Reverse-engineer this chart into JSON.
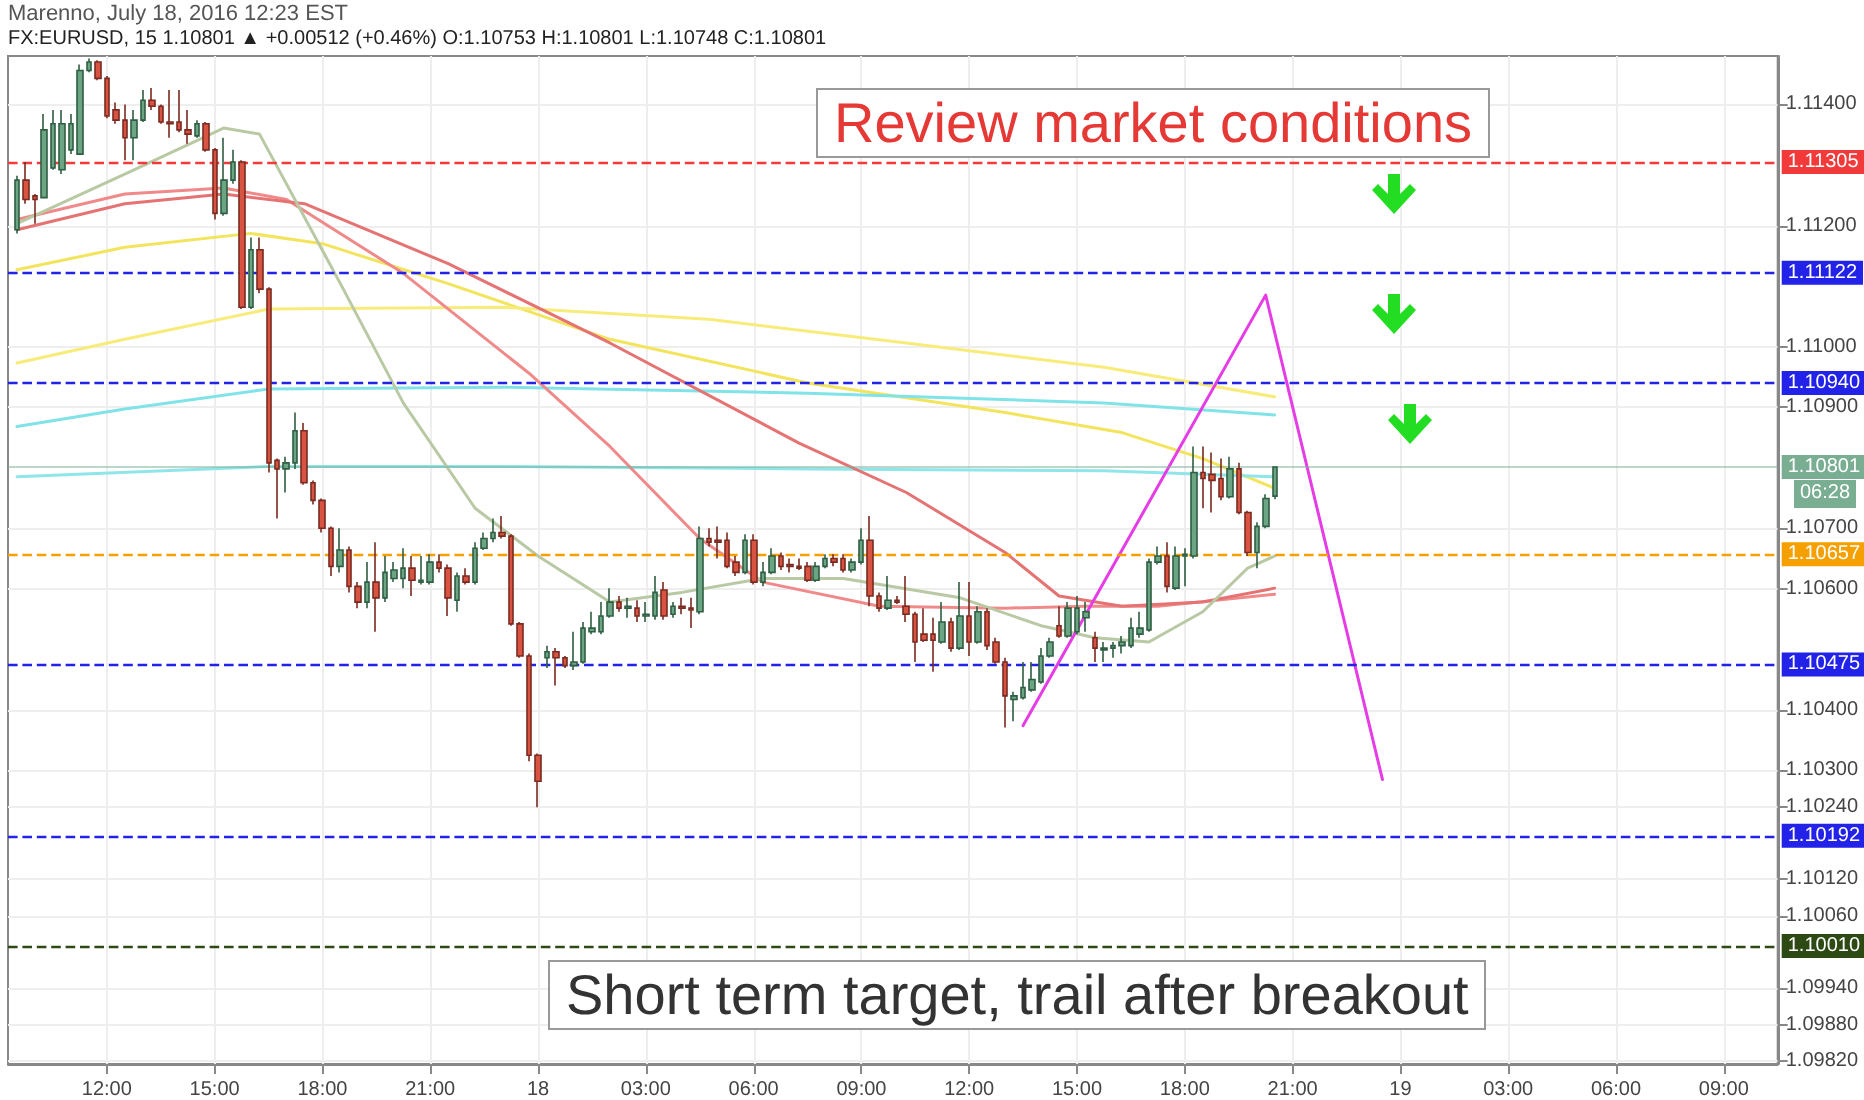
{
  "chart_data": {
    "type": "candlestick",
    "title": "Marenno, July 18, 2016 12:23 EST",
    "subtitle": "FX:EURUSD, 15 1.10801 ▲ +0.00512 (+0.46%) O:1.10753 H:1.10801 L:1.10748 C:1.10801",
    "annotations": [
      "Review market conditions",
      "Short term target, trail after breakout",
      "06:28"
    ],
    "x": [
      "2016-07-17T09:30",
      "2016-07-17T09:45",
      "2016-07-17T10:00",
      "2016-07-17T10:15",
      "2016-07-17T10:30",
      "2016-07-17T10:45",
      "2016-07-17T11:00",
      "2016-07-17T11:15",
      "2016-07-17T11:30",
      "2016-07-17T11:45",
      "2016-07-17T12:00",
      "2016-07-17T12:15",
      "2016-07-17T12:30",
      "2016-07-17T12:45",
      "2016-07-17T13:00",
      "2016-07-17T13:15",
      "2016-07-17T13:30",
      "2016-07-17T13:45",
      "2016-07-17T14:00",
      "2016-07-17T14:15",
      "2016-07-17T14:30",
      "2016-07-17T14:45",
      "2016-07-17T15:00",
      "2016-07-17T15:15",
      "2016-07-17T15:30",
      "2016-07-17T15:45",
      "2016-07-17T16:00",
      "2016-07-17T16:15",
      "2016-07-17T16:30",
      "2016-07-17T16:45",
      "2016-07-17T17:00",
      "2016-07-17T17:15",
      "2016-07-17T17:30",
      "2016-07-17T17:45",
      "2016-07-17T18:00",
      "2016-07-17T18:15",
      "2016-07-17T18:30",
      "2016-07-17T18:45",
      "2016-07-17T19:00",
      "2016-07-17T19:15",
      "2016-07-17T19:30",
      "2016-07-17T19:45",
      "2016-07-17T20:00",
      "2016-07-17T20:15",
      "2016-07-17T20:30",
      "2016-07-17T20:45",
      "2016-07-17T21:00",
      "2016-07-17T21:15",
      "2016-07-17T21:30",
      "2016-07-17T21:45",
      "2016-07-17T22:00",
      "2016-07-17T22:15",
      "2016-07-17T22:30",
      "2016-07-17T22:45",
      "2016-07-17T23:00",
      "2016-07-17T23:15",
      "2016-07-17T23:30",
      "2016-07-17T23:45",
      "2016-07-18T00:00",
      "2016-07-18T00:15",
      "2016-07-18T00:30",
      "2016-07-18T00:45",
      "2016-07-18T01:00",
      "2016-07-18T01:15",
      "2016-07-18T01:30",
      "2016-07-18T01:45",
      "2016-07-18T02:00",
      "2016-07-18T02:15",
      "2016-07-18T02:30",
      "2016-07-18T02:45",
      "2016-07-18T03:00",
      "2016-07-18T03:15",
      "2016-07-18T03:30",
      "2016-07-18T03:45",
      "2016-07-18T04:00",
      "2016-07-18T04:15",
      "2016-07-18T04:30",
      "2016-07-18T04:45",
      "2016-07-18T05:00",
      "2016-07-18T05:15",
      "2016-07-18T05:30",
      "2016-07-18T05:45",
      "2016-07-18T06:00",
      "2016-07-18T06:15",
      "2016-07-18T06:30",
      "2016-07-18T06:45",
      "2016-07-18T07:00",
      "2016-07-18T07:15",
      "2016-07-18T07:30",
      "2016-07-18T07:45",
      "2016-07-18T08:00",
      "2016-07-18T08:15",
      "2016-07-18T08:30",
      "2016-07-18T08:45",
      "2016-07-18T09:00",
      "2016-07-18T09:15",
      "2016-07-18T09:30",
      "2016-07-18T09:45",
      "2016-07-18T10:00",
      "2016-07-18T10:15",
      "2016-07-18T10:30",
      "2016-07-18T10:45",
      "2016-07-18T11:00",
      "2016-07-18T11:15",
      "2016-07-18T11:30",
      "2016-07-18T11:45",
      "2016-07-18T12:00",
      "2016-07-18T12:15",
      "2016-07-18T12:30",
      "2016-07-18T12:45",
      "2016-07-18T13:00",
      "2016-07-18T13:15",
      "2016-07-18T13:30",
      "2016-07-18T13:45",
      "2016-07-18T14:00",
      "2016-07-18T14:15",
      "2016-07-18T14:30",
      "2016-07-18T14:45",
      "2016-07-18T15:00",
      "2016-07-18T15:15",
      "2016-07-18T15:30",
      "2016-07-18T15:45",
      "2016-07-18T16:00",
      "2016-07-18T16:15",
      "2016-07-18T16:30",
      "2016-07-18T16:45",
      "2016-07-18T17:00",
      "2016-07-18T17:15",
      "2016-07-18T17:30",
      "2016-07-18T17:45",
      "2016-07-18T18:00",
      "2016-07-18T18:15",
      "2016-07-18T18:30",
      "2016-07-18T18:45",
      "2016-07-18T19:00",
      "2016-07-18T19:15",
      "2016-07-18T19:30",
      "2016-07-18T19:45",
      "2016-07-18T20:00",
      "2016-07-18T20:15",
      "2016-07-18T20:30"
    ],
    "ohlc": [
      [
        1.11193,
        1.11282,
        1.11187,
        1.11275
      ],
      [
        1.11275,
        1.11305,
        1.11236,
        1.11243
      ],
      [
        1.11249,
        1.11252,
        1.11203,
        1.11243
      ],
      [
        1.11246,
        1.11384,
        1.11246,
        1.11358
      ],
      [
        1.11295,
        1.11391,
        1.11292,
        1.11368
      ],
      [
        1.11292,
        1.11391,
        1.11285,
        1.11368
      ],
      [
        1.11325,
        1.11384,
        1.11318,
        1.11368
      ],
      [
        1.11318,
        1.11466,
        1.11318,
        1.11456
      ],
      [
        1.11456,
        1.11476,
        1.11453,
        1.1147
      ],
      [
        1.1147,
        1.11473,
        1.1144,
        1.11443
      ],
      [
        1.11443,
        1.11447,
        1.11377,
        1.11381
      ],
      [
        1.11391,
        1.11403,
        1.11368,
        1.11374
      ],
      [
        1.11374,
        1.114,
        1.11308,
        1.11345
      ],
      [
        1.11345,
        1.11391,
        1.11308,
        1.11374
      ],
      [
        1.11374,
        1.11424,
        1.11371,
        1.11407
      ],
      [
        1.11407,
        1.11427,
        1.11391,
        1.11397
      ],
      [
        1.11397,
        1.114,
        1.11368,
        1.11371
      ],
      [
        1.11371,
        1.11424,
        1.11345,
        1.11368
      ],
      [
        1.11371,
        1.11424,
        1.11354,
        1.11358
      ],
      [
        1.11358,
        1.11391,
        1.11335,
        1.11351
      ],
      [
        1.11348,
        1.11374,
        1.11345,
        1.11368
      ],
      [
        1.11368,
        1.11371,
        1.11322,
        1.11325
      ],
      [
        1.11325,
        1.11328,
        1.1121,
        1.1122
      ],
      [
        1.1122,
        1.11345,
        1.11216,
        1.11275
      ],
      [
        1.11275,
        1.11325,
        1.11269,
        1.11305
      ],
      [
        1.11305,
        1.11308,
        1.11062,
        1.11065
      ],
      [
        1.11065,
        1.1118,
        1.11062,
        1.1116
      ],
      [
        1.1116,
        1.1118,
        1.11088,
        1.11095
      ],
      [
        1.11095,
        1.11098,
        1.10792,
        1.10808
      ],
      [
        1.10812,
        1.10815,
        1.10716,
        1.10798
      ],
      [
        1.10798,
        1.10818,
        1.10759,
        1.10808
      ],
      [
        1.10808,
        1.10891,
        1.10798,
        1.10861
      ],
      [
        1.10861,
        1.10874,
        1.10772,
        1.10775
      ],
      [
        1.10775,
        1.10779,
        1.10739,
        1.10746
      ],
      [
        1.10746,
        1.10749,
        1.10693,
        1.107
      ],
      [
        1.107,
        1.10703,
        1.10621,
        1.10637
      ],
      [
        1.10637,
        1.107,
        1.10627,
        1.10664
      ],
      [
        1.10664,
        1.1067,
        1.10594,
        1.10604
      ],
      [
        1.10604,
        1.10611,
        1.10568,
        1.10578
      ],
      [
        1.10578,
        1.10644,
        1.10568,
        1.10611
      ],
      [
        1.10611,
        1.10677,
        1.10529,
        1.10585
      ],
      [
        1.10585,
        1.10654,
        1.10578,
        1.10627
      ],
      [
        1.10617,
        1.10644,
        1.10611,
        1.10631
      ],
      [
        1.10617,
        1.10667,
        1.10601,
        1.10634
      ],
      [
        1.10634,
        1.10654,
        1.10588,
        1.10614
      ],
      [
        1.10611,
        1.10654,
        1.10607,
        1.10614
      ],
      [
        1.10611,
        1.10657,
        1.10607,
        1.10644
      ],
      [
        1.10644,
        1.10657,
        1.10627,
        1.10634
      ],
      [
        1.10634,
        1.1064,
        1.10555,
        1.10585
      ],
      [
        1.10581,
        1.10627,
        1.10562,
        1.10621
      ],
      [
        1.10621,
        1.10634,
        1.10607,
        1.10611
      ],
      [
        1.10611,
        1.10677,
        1.10607,
        1.10667
      ],
      [
        1.10667,
        1.10693,
        1.10664,
        1.10683
      ],
      [
        1.10683,
        1.10716,
        1.10677,
        1.10693
      ],
      [
        1.10693,
        1.1072,
        1.10683,
        1.10687
      ],
      [
        1.10687,
        1.1069,
        1.10539,
        1.10542
      ],
      [
        1.10542,
        1.10545,
        1.10486,
        1.10489
      ],
      [
        1.10489,
        1.10493,
        1.10315,
        1.10325
      ],
      [
        1.10325,
        1.10328,
        1.10239,
        1.10282
      ],
      [
        1.10486,
        1.10506,
        1.10469,
        1.10496
      ],
      [
        1.10496,
        1.10502,
        1.1044,
        1.10486
      ],
      [
        1.10486,
        1.10489,
        1.10469,
        1.10473
      ],
      [
        1.10473,
        1.10529,
        1.10466,
        1.10479
      ],
      [
        1.10479,
        1.10545,
        1.10476,
        1.10535
      ],
      [
        1.10529,
        1.10562,
        1.10525,
        1.10535
      ],
      [
        1.10529,
        1.10578,
        1.10525,
        1.10555
      ],
      [
        1.10555,
        1.10601,
        1.10552,
        1.10578
      ],
      [
        1.10578,
        1.10588,
        1.10562,
        1.10568
      ],
      [
        1.10568,
        1.10585,
        1.10552,
        1.10571
      ],
      [
        1.10568,
        1.10581,
        1.10545,
        1.10555
      ],
      [
        1.10555,
        1.10578,
        1.10545,
        1.10558
      ],
      [
        1.10555,
        1.10621,
        1.10549,
        1.10594
      ],
      [
        1.10598,
        1.10611,
        1.10549,
        1.10555
      ],
      [
        1.10558,
        1.10578,
        1.10552,
        1.10571
      ],
      [
        1.10571,
        1.10585,
        1.10558,
        1.10568
      ],
      [
        1.10568,
        1.10585,
        1.10535,
        1.10565
      ],
      [
        1.10562,
        1.10703,
        1.10558,
        1.10683
      ],
      [
        1.10683,
        1.107,
        1.1067,
        1.10677
      ],
      [
        1.1068,
        1.10703,
        1.1065,
        1.10677
      ],
      [
        1.1068,
        1.10693,
        1.10634,
        1.10637
      ],
      [
        1.10644,
        1.10654,
        1.10621,
        1.10627
      ],
      [
        1.10627,
        1.1069,
        1.10624,
        1.1068
      ],
      [
        1.1068,
        1.1069,
        1.10607,
        1.10611
      ],
      [
        1.10611,
        1.10644,
        1.10604,
        1.10627
      ],
      [
        1.10627,
        1.10667,
        1.10624,
        1.10654
      ],
      [
        1.10654,
        1.1066,
        1.10631,
        1.10637
      ],
      [
        1.1064,
        1.1065,
        1.10627,
        1.10637
      ],
      [
        1.10637,
        1.1065,
        1.10631,
        1.10634
      ],
      [
        1.10637,
        1.10644,
        1.10611,
        1.10614
      ],
      [
        1.10614,
        1.10644,
        1.10611,
        1.10637
      ],
      [
        1.10637,
        1.10657,
        1.10634,
        1.1065
      ],
      [
        1.1065,
        1.10657,
        1.10637,
        1.10644
      ],
      [
        1.1065,
        1.10657,
        1.10627,
        1.10631
      ],
      [
        1.10631,
        1.1065,
        1.10627,
        1.10644
      ],
      [
        1.10644,
        1.107,
        1.1064,
        1.1068
      ],
      [
        1.1068,
        1.1072,
        1.10571,
        1.10588
      ],
      [
        1.10588,
        1.10594,
        1.10562,
        1.10568
      ],
      [
        1.10568,
        1.10621,
        1.10565,
        1.10581
      ],
      [
        1.10581,
        1.10588,
        1.10575,
        1.10578
      ],
      [
        1.10571,
        1.10621,
        1.10545,
        1.10558
      ],
      [
        1.10558,
        1.10562,
        1.10479,
        1.10512
      ],
      [
        1.10525,
        1.10568,
        1.10512,
        1.10515
      ],
      [
        1.10525,
        1.10552,
        1.10463,
        1.10515
      ],
      [
        1.10512,
        1.10578,
        1.10509,
        1.10545
      ],
      [
        1.10545,
        1.10552,
        1.10496,
        1.10502
      ],
      [
        1.10502,
        1.10611,
        1.10499,
        1.10555
      ],
      [
        1.10555,
        1.10611,
        1.10489,
        1.10512
      ],
      [
        1.10512,
        1.10571,
        1.10509,
        1.10562
      ],
      [
        1.10562,
        1.10568,
        1.10499,
        1.10506
      ],
      [
        1.10512,
        1.10519,
        1.10476,
        1.10479
      ],
      [
        1.10479,
        1.10486,
        1.10371,
        1.10423
      ],
      [
        1.10417,
        1.1043,
        1.10381,
        1.10423
      ],
      [
        1.1042,
        1.10479,
        1.10417,
        1.10437
      ],
      [
        1.10433,
        1.10479,
        1.1043,
        1.1045
      ],
      [
        1.10446,
        1.10502,
        1.10443,
        1.10489
      ],
      [
        1.10489,
        1.10519,
        1.10486,
        1.10512
      ],
      [
        1.10539,
        1.10571,
        1.10519,
        1.10522
      ],
      [
        1.10522,
        1.10578,
        1.10519,
        1.10568
      ],
      [
        1.10529,
        1.10588,
        1.10525,
        1.10568
      ],
      [
        1.10552,
        1.10578,
        1.10529,
        1.10562
      ],
      [
        1.10519,
        1.10529,
        1.10479,
        1.10502
      ],
      [
        1.10499,
        1.10512,
        1.10479,
        1.10502
      ],
      [
        1.10502,
        1.10512,
        1.10486,
        1.10506
      ],
      [
        1.10506,
        1.10522,
        1.10493,
        1.10512
      ],
      [
        1.10506,
        1.10552,
        1.10502,
        1.10535
      ],
      [
        1.10525,
        1.10562,
        1.10519,
        1.10535
      ],
      [
        1.10532,
        1.1065,
        1.10529,
        1.10644
      ],
      [
        1.10644,
        1.1067,
        1.1064,
        1.10654
      ],
      [
        1.10654,
        1.10677,
        1.10594,
        1.10604
      ],
      [
        1.10601,
        1.1067,
        1.10598,
        1.10654
      ],
      [
        1.10654,
        1.10667,
        1.10604,
        1.10657
      ],
      [
        1.10654,
        1.10835,
        1.1065,
        1.10792
      ],
      [
        1.10792,
        1.10835,
        1.10733,
        1.10782
      ],
      [
        1.10789,
        1.10825,
        1.10726,
        1.10779
      ],
      [
        1.10782,
        1.10815,
        1.10746,
        1.10752
      ],
      [
        1.10752,
        1.10818,
        1.10749,
        1.10798
      ],
      [
        1.10798,
        1.10808,
        1.10723,
        1.10726
      ],
      [
        1.10726,
        1.10729,
        1.10654,
        1.1066
      ],
      [
        1.1066,
        1.1071,
        1.10634,
        1.10703
      ],
      [
        1.10703,
        1.10756,
        1.107,
        1.10749
      ],
      [
        1.10753,
        1.10801,
        1.10748,
        1.10801
      ]
    ],
    "series": [
      {
        "type": "line",
        "color": "#f2e45c",
        "x": [
          "2016-07-17T09:30",
          "2016-07-17T12:30",
          "2016-07-17T16:00",
          "2016-07-17T18:00",
          "2016-07-17T21:30",
          "2016-07-18T02:00",
          "2016-07-18T07:30",
          "2016-07-18T13:00",
          "2016-07-18T16:15",
          "2016-07-18T18:30",
          "2016-07-18T20:30"
        ],
        "values": [
          1.11127,
          1.11164,
          1.11187,
          1.1117,
          1.11104,
          1.11012,
          1.1094,
          1.10891,
          1.10858,
          1.10815,
          1.10766
        ]
      },
      {
        "type": "line",
        "color": "#f7ec7a",
        "x": [
          "2016-07-17T09:30",
          "2016-07-17T12:30",
          "2016-07-17T16:30",
          "2016-07-17T23:00",
          "2016-07-18T04:45",
          "2016-07-18T10:15",
          "2016-07-18T15:45",
          "2016-07-18T20:30"
        ],
        "values": [
          1.10973,
          1.11012,
          1.11062,
          1.11065,
          1.11045,
          1.11006,
          1.10966,
          1.10917
        ]
      },
      {
        "type": "line",
        "color": "#7fe3e8",
        "x": [
          "2016-07-17T09:30",
          "2016-07-17T12:30",
          "2016-07-17T16:30",
          "2016-07-17T23:00",
          "2016-07-18T07:30",
          "2016-07-18T15:45",
          "2016-07-18T20:30"
        ],
        "values": [
          1.10868,
          1.10897,
          1.1093,
          1.10933,
          1.10923,
          1.10907,
          1.10887
        ]
      },
      {
        "type": "line",
        "color": "#8fe6ea",
        "x": [
          "2016-07-17T09:30",
          "2016-07-17T16:30",
          "2016-07-17T23:00",
          "2016-07-18T07:30",
          "2016-07-18T15:45",
          "2016-07-18T20:30"
        ],
        "values": [
          1.10785,
          1.10802,
          1.10802,
          1.10798,
          1.10795,
          1.10785
        ]
      },
      {
        "type": "line",
        "color": "#f08a8a",
        "x": [
          "2016-07-17T09:30",
          "2016-07-17T12:30",
          "2016-07-17T15:15",
          "2016-07-17T17:00",
          "2016-07-17T20:15",
          "2016-07-17T23:45",
          "2016-07-18T02:00",
          "2016-07-18T04:30",
          "2016-07-18T06:15",
          "2016-07-18T09:30",
          "2016-07-18T13:00",
          "2016-07-18T15:15",
          "2016-07-18T17:15",
          "2016-07-18T20:30"
        ],
        "values": [
          1.1121,
          1.11252,
          1.11262,
          1.11243,
          1.11121,
          1.10956,
          1.10835,
          1.10683,
          1.10611,
          1.10571,
          1.10568,
          1.10571,
          1.10571,
          1.10591
        ]
      },
      {
        "type": "line",
        "color": "#e57373",
        "x": [
          "2016-07-17T09:30",
          "2016-07-17T12:30",
          "2016-07-17T15:15",
          "2016-07-17T17:30",
          "2016-07-17T21:30",
          "2016-07-18T02:00",
          "2016-07-18T07:15",
          "2016-07-18T10:15",
          "2016-07-18T13:00",
          "2016-07-18T14:30",
          "2016-07-18T16:15",
          "2016-07-18T18:30",
          "2016-07-18T20:30"
        ],
        "values": [
          1.11193,
          1.11236,
          1.11252,
          1.11236,
          1.11137,
          1.11006,
          1.10841,
          1.10759,
          1.1066,
          1.10588,
          1.10571,
          1.10578,
          1.10601
        ]
      },
      {
        "type": "line",
        "color": "#b9c9a4",
        "x": [
          "2016-07-17T09:30",
          "2016-07-17T12:30",
          "2016-07-17T15:15",
          "2016-07-17T16:15",
          "2016-07-17T18:30",
          "2016-07-17T20:15",
          "2016-07-17T22:15",
          "2016-07-18T00:00",
          "2016-07-18T02:00",
          "2016-07-18T04:00",
          "2016-07-18T06:15",
          "2016-07-18T08:30",
          "2016-07-18T11:45",
          "2016-07-18T14:00",
          "2016-07-18T15:30",
          "2016-07-18T17:00",
          "2016-07-18T18:30",
          "2016-07-18T19:45",
          "2016-07-18T20:30"
        ],
        "values": [
          1.11203,
          1.11285,
          1.11361,
          1.11351,
          1.11104,
          1.10907,
          1.10733,
          1.10654,
          1.10578,
          1.10594,
          1.10617,
          1.10617,
          1.10585,
          1.10539,
          1.10519,
          1.10512,
          1.10562,
          1.10634,
          1.10654
        ]
      },
      {
        "type": "line",
        "color": "#e63ce6",
        "x": [
          "2016-07-18T13:30",
          "2016-07-18T20:15",
          "2016-07-18T23:30"
        ],
        "values": [
          1.10374,
          1.11085,
          1.10285
        ]
      }
    ],
    "ref_lines": [
      {
        "axis": "y",
        "value": 1.11305,
        "label": "1.11305",
        "color": "#f23a3a",
        "line_style": "dashed"
      },
      {
        "axis": "y",
        "value": 1.11122,
        "label": "1.11122",
        "color": "#2222e8",
        "line_style": "dashed"
      },
      {
        "axis": "y",
        "value": 1.1094,
        "label": "1.10940",
        "color": "#2222e8",
        "line_style": "dashed"
      },
      {
        "axis": "y",
        "value": 1.10801,
        "label": "1.10801",
        "color": "#7aae93",
        "line_style": "solid"
      },
      {
        "axis": "y",
        "value": 1.10657,
        "label": "1.10657",
        "color": "#f5a000",
        "line_style": "dashed"
      },
      {
        "axis": "y",
        "value": 1.10475,
        "label": "1.10475",
        "color": "#2222e8",
        "line_style": "dashed"
      },
      {
        "axis": "y",
        "value": 1.10192,
        "label": "1.10192",
        "color": "#2222e8",
        "line_style": "dashed"
      },
      {
        "axis": "y",
        "value": 1.1001,
        "label": "1.10010",
        "color": "#2d4a14",
        "line_style": "dashed"
      }
    ],
    "xlim": [
      "2016-07-17T09:15",
      "2016-07-19T10:30"
    ],
    "xticks": [
      {
        "value": "2016-07-17T12:00",
        "label": "12:00"
      },
      {
        "value": "2016-07-17T15:00",
        "label": "15:00"
      },
      {
        "value": "2016-07-17T18:00",
        "label": "18:00"
      },
      {
        "value": "2016-07-17T21:00",
        "label": "21:00"
      },
      {
        "value": "2016-07-18T00:00",
        "label": "18"
      },
      {
        "value": "2016-07-18T03:00",
        "label": "03:00"
      },
      {
        "value": "2016-07-18T06:00",
        "label": "06:00"
      },
      {
        "value": "2016-07-18T09:00",
        "label": "09:00"
      },
      {
        "value": "2016-07-18T12:00",
        "label": "12:00"
      },
      {
        "value": "2016-07-18T15:00",
        "label": "15:00"
      },
      {
        "value": "2016-07-18T18:00",
        "label": "18:00"
      },
      {
        "value": "2016-07-18T21:00",
        "label": "21:00"
      },
      {
        "value": "2016-07-19T00:00",
        "label": "19"
      },
      {
        "value": "2016-07-19T03:00",
        "label": "03:00"
      },
      {
        "value": "2016-07-19T06:00",
        "label": "06:00"
      },
      {
        "value": "2016-07-19T09:00",
        "label": "09:00"
      }
    ],
    "ylim": [
      1.09815,
      1.1148
    ],
    "yticks": [
      {
        "value": 1.114,
        "label": "1.11400"
      },
      {
        "value": 1.112,
        "label": "1.11200"
      },
      {
        "value": 1.11,
        "label": "1.11000"
      },
      {
        "value": 1.109,
        "label": "1.10900"
      },
      {
        "value": 1.107,
        "label": "1.10700"
      },
      {
        "value": 1.106,
        "label": "1.10600"
      },
      {
        "value": 1.104,
        "label": "1.10400"
      },
      {
        "value": 1.103,
        "label": "1.10300"
      },
      {
        "value": 1.1024,
        "label": "1.10240"
      },
      {
        "value": 1.1012,
        "label": "1.10120"
      },
      {
        "value": 1.1006,
        "label": "1.10060"
      },
      {
        "value": 1.0994,
        "label": "1.09940"
      },
      {
        "value": 1.0988,
        "label": "1.09880"
      },
      {
        "value": 1.0982,
        "label": "1.09820"
      }
    ],
    "grid": true,
    "marker": "none",
    "line_style": "solid"
  }
}
